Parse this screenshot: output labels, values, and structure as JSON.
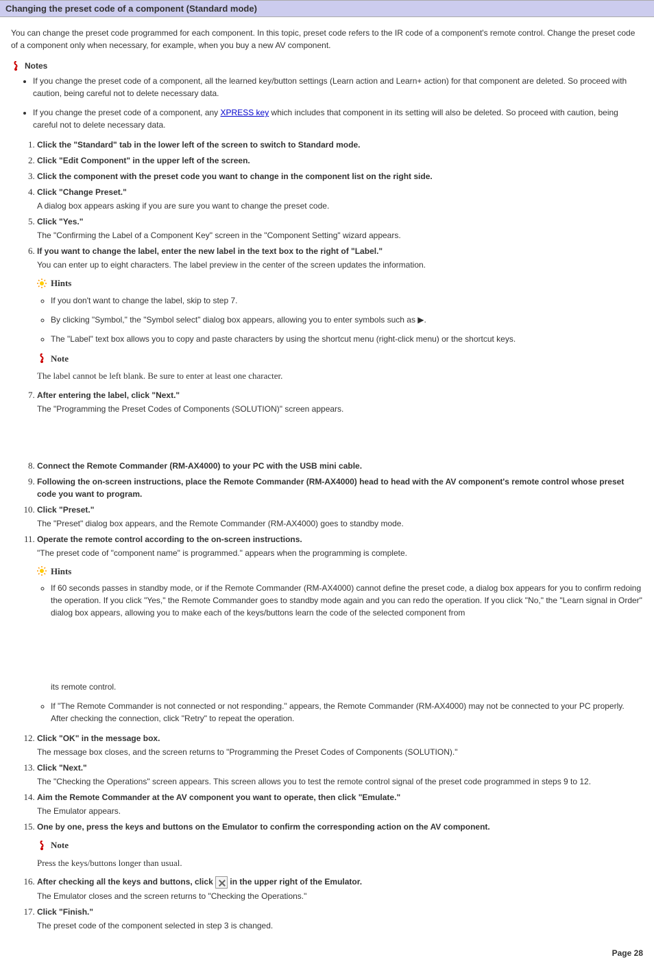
{
  "title": "Changing the preset code of a component (Standard mode)",
  "intro": "You can change the preset code programmed for each component. In this topic, preset code refers to the IR code of a component's remote control. Change the preset code of a component only when necessary, for example, when you buy a new AV component.",
  "labels": {
    "notes": "Notes",
    "note": "Note",
    "hints": "Hints"
  },
  "link_text": "XPRESS key",
  "notes_bullets": [
    "If you change the preset code of a component, all the learned key/button settings (Learn action and Learn+ action) for that component are deleted. So proceed with caution, being careful not to delete necessary data.",
    "If you change the preset code of a component, any ___LINK___ which includes that component in its setting will also be deleted. So proceed with caution, being careful not to delete necessary data."
  ],
  "steps": {
    "s1": "Click the \"Standard\" tab in the lower left of the screen to switch to Standard mode.",
    "s2": "Click \"Edit Component\" in the upper left of the screen.",
    "s3": "Click the component with the preset code you want to change in the component list on the right side.",
    "s4": "Click \"Change Preset.\"",
    "s4d": "A dialog box appears asking if you are sure you want to change the preset code.",
    "s5": "Click \"Yes.\"",
    "s5d": "The \"Confirming the Label of a Component Key\" screen in the \"Component Setting\" wizard appears.",
    "s6": "If you want to change the label, enter the new label in the text box to the right of \"Label.\"",
    "s6d": "You can enter up to eight characters. The label preview in the center of the screen updates the information.",
    "s6_hints": [
      "If you don't want to change the label, skip to step 7.",
      "By clicking \"Symbol,\" the \"Symbol select\" dialog box appears, allowing you to enter symbols such as ▶.",
      "The \"Label\" text box allows you to copy and paste characters by using the shortcut menu (right-click menu) or the shortcut keys."
    ],
    "s6_note": "The label cannot be left blank. Be sure to enter at least one character.",
    "s7": "After entering the label, click \"Next.\"",
    "s7d": "The \"Programming the Preset Codes of Components (SOLUTION)\" screen appears.",
    "s8": "Connect the Remote Commander (RM-AX4000) to your PC with the USB mini cable.",
    "s9": "Following the on-screen instructions, place the Remote Commander (RM-AX4000) head to head with the AV component's remote control whose preset code you want to program.",
    "s10": "Click \"Preset.\"",
    "s10d": "The \"Preset\" dialog box appears, and the Remote Commander (RM-AX4000) goes to standby mode.",
    "s11": "Operate the remote control according to the on-screen instructions.",
    "s11d": "\"The preset code of \"component name\" is programmed.\" appears when the programming is complete.",
    "s11_hints": [
      "If 60 seconds passes in standby mode, or if the Remote Commander (RM-AX4000) cannot define the preset code, a dialog box appears for you to confirm redoing the operation. If you click \"Yes,\" the Remote Commander goes to standby mode again and you can redo the operation. If you click \"No,\" the \"Learn signal in Order\" dialog box appears, allowing you to make each of the keys/buttons learn the code of the selected component from",
      "its remote control.",
      "If \"The Remote Commander is not connected or not responding.\" appears, the Remote Commander (RM-AX4000) may not be connected to your PC properly. After checking the connection, click \"Retry\" to repeat the operation."
    ],
    "s12": "Click \"OK\" in the message box.",
    "s12d": "The message box closes, and the screen returns to \"Programming the Preset Codes of Components (SOLUTION).\"",
    "s13": "Click \"Next.\"",
    "s13d": "The \"Checking the Operations\" screen appears. This screen allows you to test the remote control signal of the preset code programmed in steps 9 to 12.",
    "s14": "Aim the Remote Commander at the AV component you want to operate, then click \"Emulate.\"",
    "s14d": "The Emulator appears.",
    "s15": "One by one, press the keys and buttons on the Emulator to confirm the corresponding action on the AV component.",
    "s15_note": "Press the keys/buttons longer than usual.",
    "s16a": "After checking all the keys and buttons, click ",
    "s16b": " in the upper right of the Emulator.",
    "s16d": "The Emulator closes and the screen returns to \"Checking the Operations.\"",
    "s17": "Click \"Finish.\"",
    "s17d": "The preset code of the component selected in step 3 is changed."
  },
  "page_number": "Page 28",
  "colors": {
    "title_bg": "#ccccee",
    "link": "#0000cc",
    "note_icon": "#cc0000",
    "hint_icon": "#ffcc00",
    "hint_icon_center": "#ff9900"
  }
}
